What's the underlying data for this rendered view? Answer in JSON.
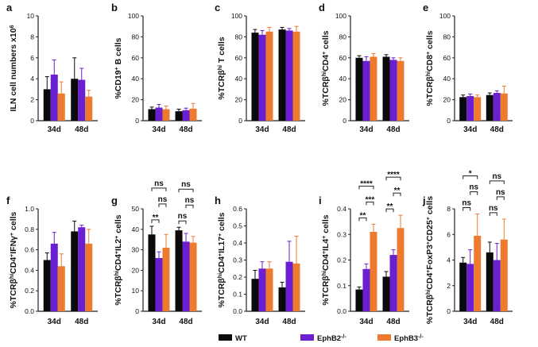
{
  "colors": {
    "WT": "#0a0a0a",
    "EphB2": "#6a1fd1",
    "EphB3": "#ee7a2e",
    "axis": "#222222"
  },
  "legend": [
    {
      "key": "WT",
      "label": "WT"
    },
    {
      "key": "EphB2",
      "label": "EphB2-/-"
    },
    {
      "key": "EphB3",
      "label": "EphB3-/-"
    }
  ],
  "chart_data": [
    {
      "panel": "a",
      "type": "bar",
      "ylabel": "ILN cell numbers x10^6",
      "ylim": [
        0,
        10
      ],
      "yticks": [
        0,
        2,
        4,
        6,
        8,
        10
      ],
      "categories": [
        "34d",
        "48d"
      ],
      "series": [
        {
          "name": "WT",
          "values": [
            3.0,
            4.0
          ],
          "errors": [
            1.2,
            2.0
          ]
        },
        {
          "name": "EphB2-/-",
          "values": [
            4.4,
            3.9
          ],
          "errors": [
            1.4,
            1.1
          ]
        },
        {
          "name": "EphB3-/-",
          "values": [
            2.6,
            2.3
          ],
          "errors": [
            1.1,
            0.6
          ]
        }
      ],
      "significance": []
    },
    {
      "panel": "b",
      "type": "bar",
      "ylabel": "%CD19+ B cells",
      "ylim": [
        0,
        100
      ],
      "yticks": [
        0,
        20,
        40,
        60,
        80,
        100
      ],
      "categories": [
        "34d",
        "48d"
      ],
      "series": [
        {
          "name": "WT",
          "values": [
            11,
            9
          ],
          "errors": [
            2,
            2
          ]
        },
        {
          "name": "EphB2-/-",
          "values": [
            12.5,
            10
          ],
          "errors": [
            3,
            2
          ]
        },
        {
          "name": "EphB3-/-",
          "values": [
            11,
            11.5
          ],
          "errors": [
            3,
            5
          ]
        }
      ],
      "significance": []
    },
    {
      "panel": "c",
      "type": "bar",
      "ylabel": "%TCRβhi T cells",
      "ylim": [
        0,
        100
      ],
      "yticks": [
        0,
        20,
        40,
        60,
        80,
        100
      ],
      "categories": [
        "34d",
        "48d"
      ],
      "series": [
        {
          "name": "WT",
          "values": [
            84,
            87
          ],
          "errors": [
            3,
            2
          ]
        },
        {
          "name": "EphB2-/-",
          "values": [
            82,
            86
          ],
          "errors": [
            4,
            2
          ]
        },
        {
          "name": "EphB3-/-",
          "values": [
            85,
            85
          ],
          "errors": [
            4,
            5
          ]
        }
      ],
      "significance": []
    },
    {
      "panel": "d",
      "type": "bar",
      "ylabel": "%TCRβhiCD4+ cells",
      "ylim": [
        0,
        100
      ],
      "yticks": [
        0,
        20,
        40,
        60,
        80,
        100
      ],
      "categories": [
        "34d",
        "48d"
      ],
      "series": [
        {
          "name": "WT",
          "values": [
            60,
            61
          ],
          "errors": [
            2,
            2
          ]
        },
        {
          "name": "EphB2-/-",
          "values": [
            57,
            58
          ],
          "errors": [
            4,
            2
          ]
        },
        {
          "name": "EphB3-/-",
          "values": [
            61,
            57
          ],
          "errors": [
            3,
            3
          ]
        }
      ],
      "significance": []
    },
    {
      "panel": "e",
      "type": "bar",
      "ylabel": "%TCRβhiCD8+ cells",
      "ylim": [
        0,
        100
      ],
      "yticks": [
        0,
        20,
        40,
        60,
        80,
        100
      ],
      "categories": [
        "34d",
        "48d"
      ],
      "series": [
        {
          "name": "WT",
          "values": [
            22.5,
            24.5
          ],
          "errors": [
            2,
            2
          ]
        },
        {
          "name": "EphB2-/-",
          "values": [
            23.5,
            26.5
          ],
          "errors": [
            2,
            2
          ]
        },
        {
          "name": "EphB3-/-",
          "values": [
            22.5,
            26
          ],
          "errors": [
            2,
            7
          ]
        }
      ],
      "significance": []
    },
    {
      "panel": "f",
      "type": "bar",
      "ylabel": "%TCRβhiCD4+IFNγ+ cells",
      "ylim": [
        0,
        1.0
      ],
      "yticks": [
        0.0,
        0.2,
        0.4,
        0.6,
        0.8,
        1.0
      ],
      "categories": [
        "34d",
        "48d"
      ],
      "series": [
        {
          "name": "WT",
          "values": [
            0.5,
            0.78
          ],
          "errors": [
            0.07,
            0.1
          ]
        },
        {
          "name": "EphB2-/-",
          "values": [
            0.66,
            0.82
          ],
          "errors": [
            0.11,
            0.02
          ]
        },
        {
          "name": "EphB3-/-",
          "values": [
            0.44,
            0.66
          ],
          "errors": [
            0.12,
            0.14
          ]
        }
      ],
      "significance": []
    },
    {
      "panel": "g",
      "type": "bar",
      "ylabel": "%TCRβhiCD4+IL2+ cells",
      "ylim": [
        0,
        50
      ],
      "yticks": [
        0,
        10,
        20,
        30,
        40,
        50
      ],
      "categories": [
        "34d",
        "48d"
      ],
      "series": [
        {
          "name": "WT",
          "values": [
            37.5,
            39.5
          ],
          "errors": [
            4,
            1.5
          ]
        },
        {
          "name": "EphB2-/-",
          "values": [
            26,
            34
          ],
          "errors": [
            3,
            4
          ]
        },
        {
          "name": "EphB3-/-",
          "values": [
            31,
            33.5
          ],
          "errors": [
            6.5,
            3
          ]
        }
      ],
      "significance": [
        {
          "group": 0,
          "from": 0,
          "to": 1,
          "label": "**",
          "level": 0
        },
        {
          "group": 0,
          "from": 1,
          "to": 2,
          "label": "ns",
          "level": 1
        },
        {
          "group": 0,
          "from": 0,
          "to": 2,
          "label": "ns",
          "level": 2
        },
        {
          "group": 1,
          "from": 0,
          "to": 1,
          "label": "ns",
          "level": 0
        },
        {
          "group": 1,
          "from": 1,
          "to": 2,
          "label": "ns",
          "level": 1
        },
        {
          "group": 1,
          "from": 0,
          "to": 2,
          "label": "ns",
          "level": 2
        }
      ]
    },
    {
      "panel": "h",
      "type": "bar",
      "ylabel": "%TCRβhiCD4+IL17+ cells",
      "ylim": [
        0,
        0.6
      ],
      "yticks": [
        0.0,
        0.1,
        0.2,
        0.3,
        0.4,
        0.5,
        0.6
      ],
      "categories": [
        "34d",
        "48d"
      ],
      "series": [
        {
          "name": "WT",
          "values": [
            0.19,
            0.14
          ],
          "errors": [
            0.05,
            0.03
          ]
        },
        {
          "name": "EphB2-/-",
          "values": [
            0.25,
            0.29
          ],
          "errors": [
            0.04,
            0.12
          ]
        },
        {
          "name": "EphB3-/-",
          "values": [
            0.25,
            0.28
          ],
          "errors": [
            0.04,
            0.16
          ]
        }
      ],
      "significance": []
    },
    {
      "panel": "i",
      "type": "bar",
      "ylabel": "%TCRβhiCD4+IL4+ cells",
      "ylim": [
        0,
        0.4
      ],
      "yticks": [
        0.0,
        0.1,
        0.2,
        0.3,
        0.4
      ],
      "categories": [
        "34d",
        "48d"
      ],
      "series": [
        {
          "name": "WT",
          "values": [
            0.085,
            0.135
          ],
          "errors": [
            0.01,
            0.02
          ]
        },
        {
          "name": "EphB2-/-",
          "values": [
            0.165,
            0.22
          ],
          "errors": [
            0.02,
            0.02
          ]
        },
        {
          "name": "EphB3-/-",
          "values": [
            0.31,
            0.325
          ],
          "errors": [
            0.03,
            0.05
          ]
        }
      ],
      "significance": [
        {
          "group": 0,
          "from": 0,
          "to": 1,
          "label": "**",
          "level": 0
        },
        {
          "group": 0,
          "from": 1,
          "to": 2,
          "label": "***",
          "level": 1
        },
        {
          "group": 0,
          "from": 0,
          "to": 2,
          "label": "****",
          "level": 2
        },
        {
          "group": 1,
          "from": 0,
          "to": 1,
          "label": "**",
          "level": 0
        },
        {
          "group": 1,
          "from": 1,
          "to": 2,
          "label": "**",
          "level": 1
        },
        {
          "group": 1,
          "from": 0,
          "to": 2,
          "label": "****",
          "level": 2
        }
      ]
    },
    {
      "panel": "j",
      "type": "bar",
      "ylabel": "%TCRβhiCD4+FoxP3+CD25+ cells",
      "ylim": [
        0,
        8
      ],
      "yticks": [
        0,
        2,
        4,
        6,
        8
      ],
      "categories": [
        "34d",
        "48d"
      ],
      "series": [
        {
          "name": "WT",
          "values": [
            3.8,
            4.6
          ],
          "errors": [
            0.4,
            0.8
          ]
        },
        {
          "name": "EphB2-/-",
          "values": [
            3.7,
            4.0
          ],
          "errors": [
            1.1,
            1.3
          ]
        },
        {
          "name": "EphB3-/-",
          "values": [
            5.9,
            5.6
          ],
          "errors": [
            1.7,
            1.6
          ]
        }
      ],
      "significance": [
        {
          "group": 0,
          "from": 0,
          "to": 1,
          "label": "ns",
          "level": 0
        },
        {
          "group": 0,
          "from": 1,
          "to": 2,
          "label": "ns",
          "level": 1
        },
        {
          "group": 0,
          "from": 0,
          "to": 2,
          "label": "*",
          "level": 2
        },
        {
          "group": 1,
          "from": 0,
          "to": 1,
          "label": "ns",
          "level": 0
        },
        {
          "group": 1,
          "from": 1,
          "to": 2,
          "label": "ns",
          "level": 1
        },
        {
          "group": 1,
          "from": 0,
          "to": 2,
          "label": "ns",
          "level": 2
        }
      ]
    }
  ]
}
